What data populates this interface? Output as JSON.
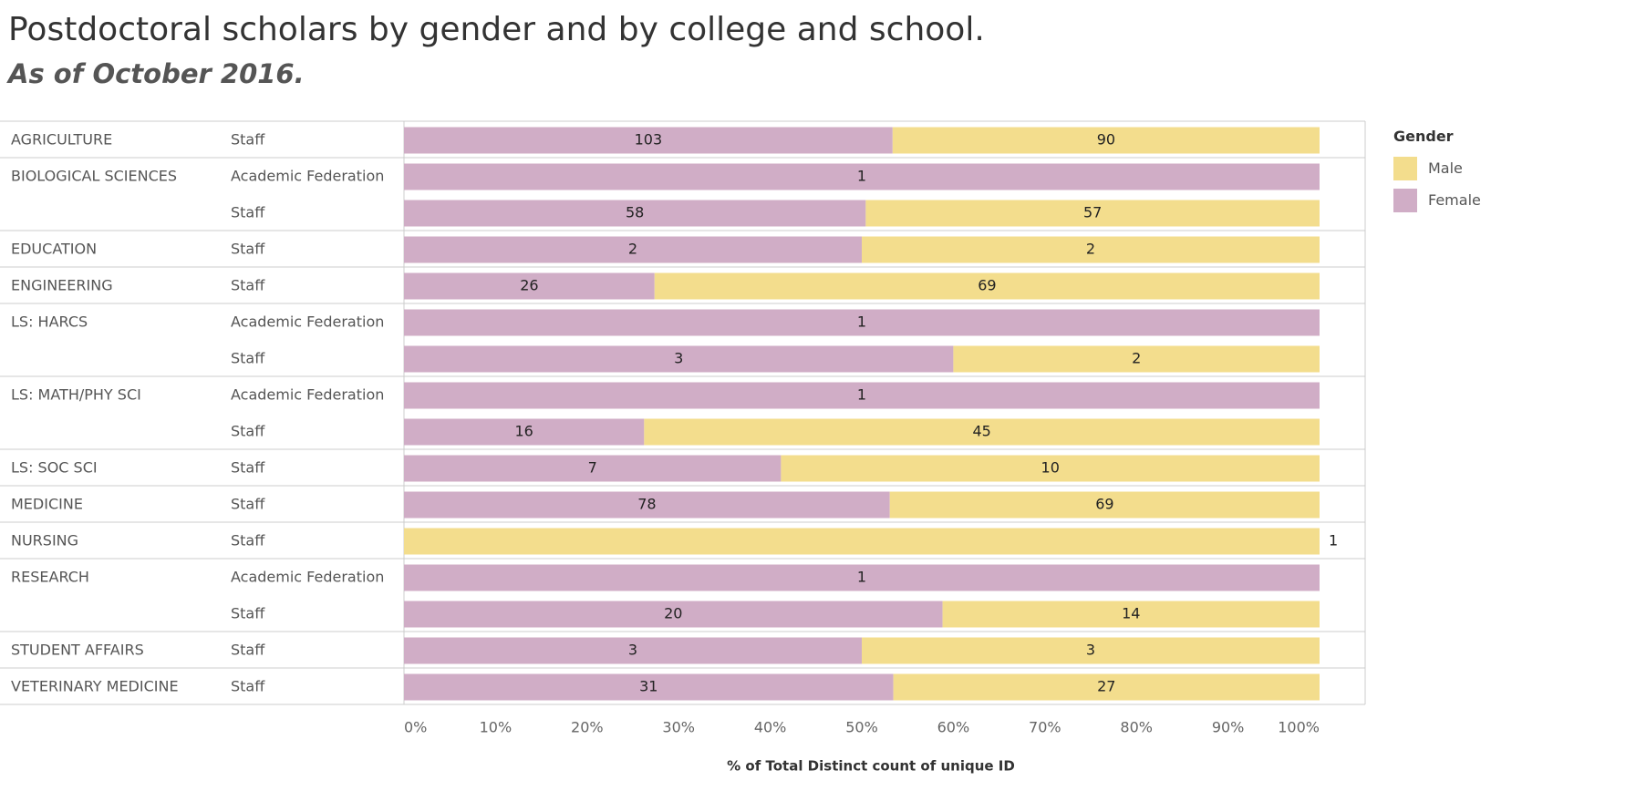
{
  "header": {
    "title": "Postdoctoral scholars by gender and by college and school.",
    "subtitle": "As of October 2016."
  },
  "legend": {
    "title": "Gender",
    "items": [
      {
        "label": "Male",
        "color": "#f3dd8d"
      },
      {
        "label": "Female",
        "color": "#d0adc6"
      }
    ]
  },
  "chart_data": {
    "type": "bar",
    "orientation": "horizontal",
    "stacked": "percent",
    "xlabel": "% of Total Distinct count of unique ID",
    "xlim": [
      0,
      100
    ],
    "x_ticks": [
      "0%",
      "10%",
      "20%",
      "30%",
      "40%",
      "50%",
      "60%",
      "70%",
      "80%",
      "90%",
      "100%"
    ],
    "series_colors": {
      "Female": "#d0adc6",
      "Male": "#f3dd8d"
    },
    "groups": [
      {
        "college": "AGRICULTURE",
        "rows": [
          {
            "type": "Staff",
            "female": 103,
            "male": 90
          }
        ]
      },
      {
        "college": "BIOLOGICAL SCIENCES",
        "rows": [
          {
            "type": "Academic Federation",
            "female": 1,
            "male": 0
          },
          {
            "type": "Staff",
            "female": 58,
            "male": 57
          }
        ]
      },
      {
        "college": "EDUCATION",
        "rows": [
          {
            "type": "Staff",
            "female": 2,
            "male": 2
          }
        ]
      },
      {
        "college": "ENGINEERING",
        "rows": [
          {
            "type": "Staff",
            "female": 26,
            "male": 69
          }
        ]
      },
      {
        "college": "LS: HARCS",
        "rows": [
          {
            "type": "Academic Federation",
            "female": 1,
            "male": 0
          },
          {
            "type": "Staff",
            "female": 3,
            "male": 2
          }
        ]
      },
      {
        "college": "LS: MATH/PHY SCI",
        "rows": [
          {
            "type": "Academic Federation",
            "female": 1,
            "male": 0
          },
          {
            "type": "Staff",
            "female": 16,
            "male": 45
          }
        ]
      },
      {
        "college": "LS: SOC SCI",
        "rows": [
          {
            "type": "Staff",
            "female": 7,
            "male": 10
          }
        ]
      },
      {
        "college": "MEDICINE",
        "rows": [
          {
            "type": "Staff",
            "female": 78,
            "male": 69
          }
        ]
      },
      {
        "college": "NURSING",
        "rows": [
          {
            "type": "Staff",
            "female": 0,
            "male": 1
          }
        ]
      },
      {
        "college": "RESEARCH",
        "rows": [
          {
            "type": "Academic Federation",
            "female": 1,
            "male": 0
          },
          {
            "type": "Staff",
            "female": 20,
            "male": 14
          }
        ]
      },
      {
        "college": "STUDENT AFFAIRS",
        "rows": [
          {
            "type": "Staff",
            "female": 3,
            "male": 3
          }
        ]
      },
      {
        "college": "VETERINARY MEDICINE",
        "rows": [
          {
            "type": "Staff",
            "female": 31,
            "male": 27
          }
        ]
      }
    ]
  }
}
